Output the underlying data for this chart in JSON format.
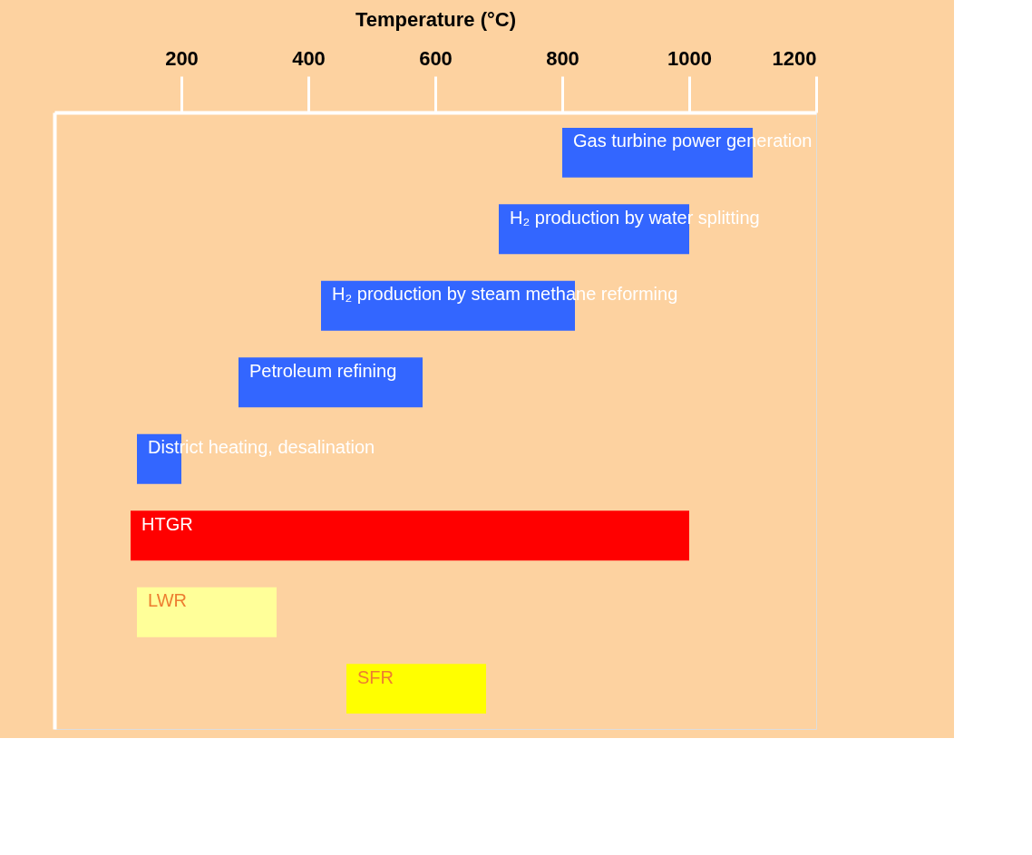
{
  "chart_data": {
    "type": "bar",
    "orientation": "horizontal",
    "xlabel": "Temperature (°C)",
    "categories": [
      "Gas turbine power generation",
      "H₂ production by water splitting",
      "H₂ production by steam methane reforming",
      "Petroleum refining",
      "District heating, desalination",
      "HTGR",
      "LWR",
      "SFR"
    ],
    "base": [
      800,
      700,
      420,
      290,
      130,
      120,
      130,
      460
    ],
    "values": [
      300,
      300,
      400,
      290,
      70,
      880,
      220,
      220
    ],
    "colors": [
      "#3366ff",
      "#3366ff",
      "#3366ff",
      "#3366ff",
      "#3366ff",
      "#ff0000",
      "#ffff99",
      "#ffff00"
    ],
    "xlim": [
      0,
      1200
    ],
    "xticks": [
      200,
      400,
      600,
      800,
      1000,
      1200
    ],
    "tick_labels": "x",
    "grid": false,
    "legend": false
  }
}
